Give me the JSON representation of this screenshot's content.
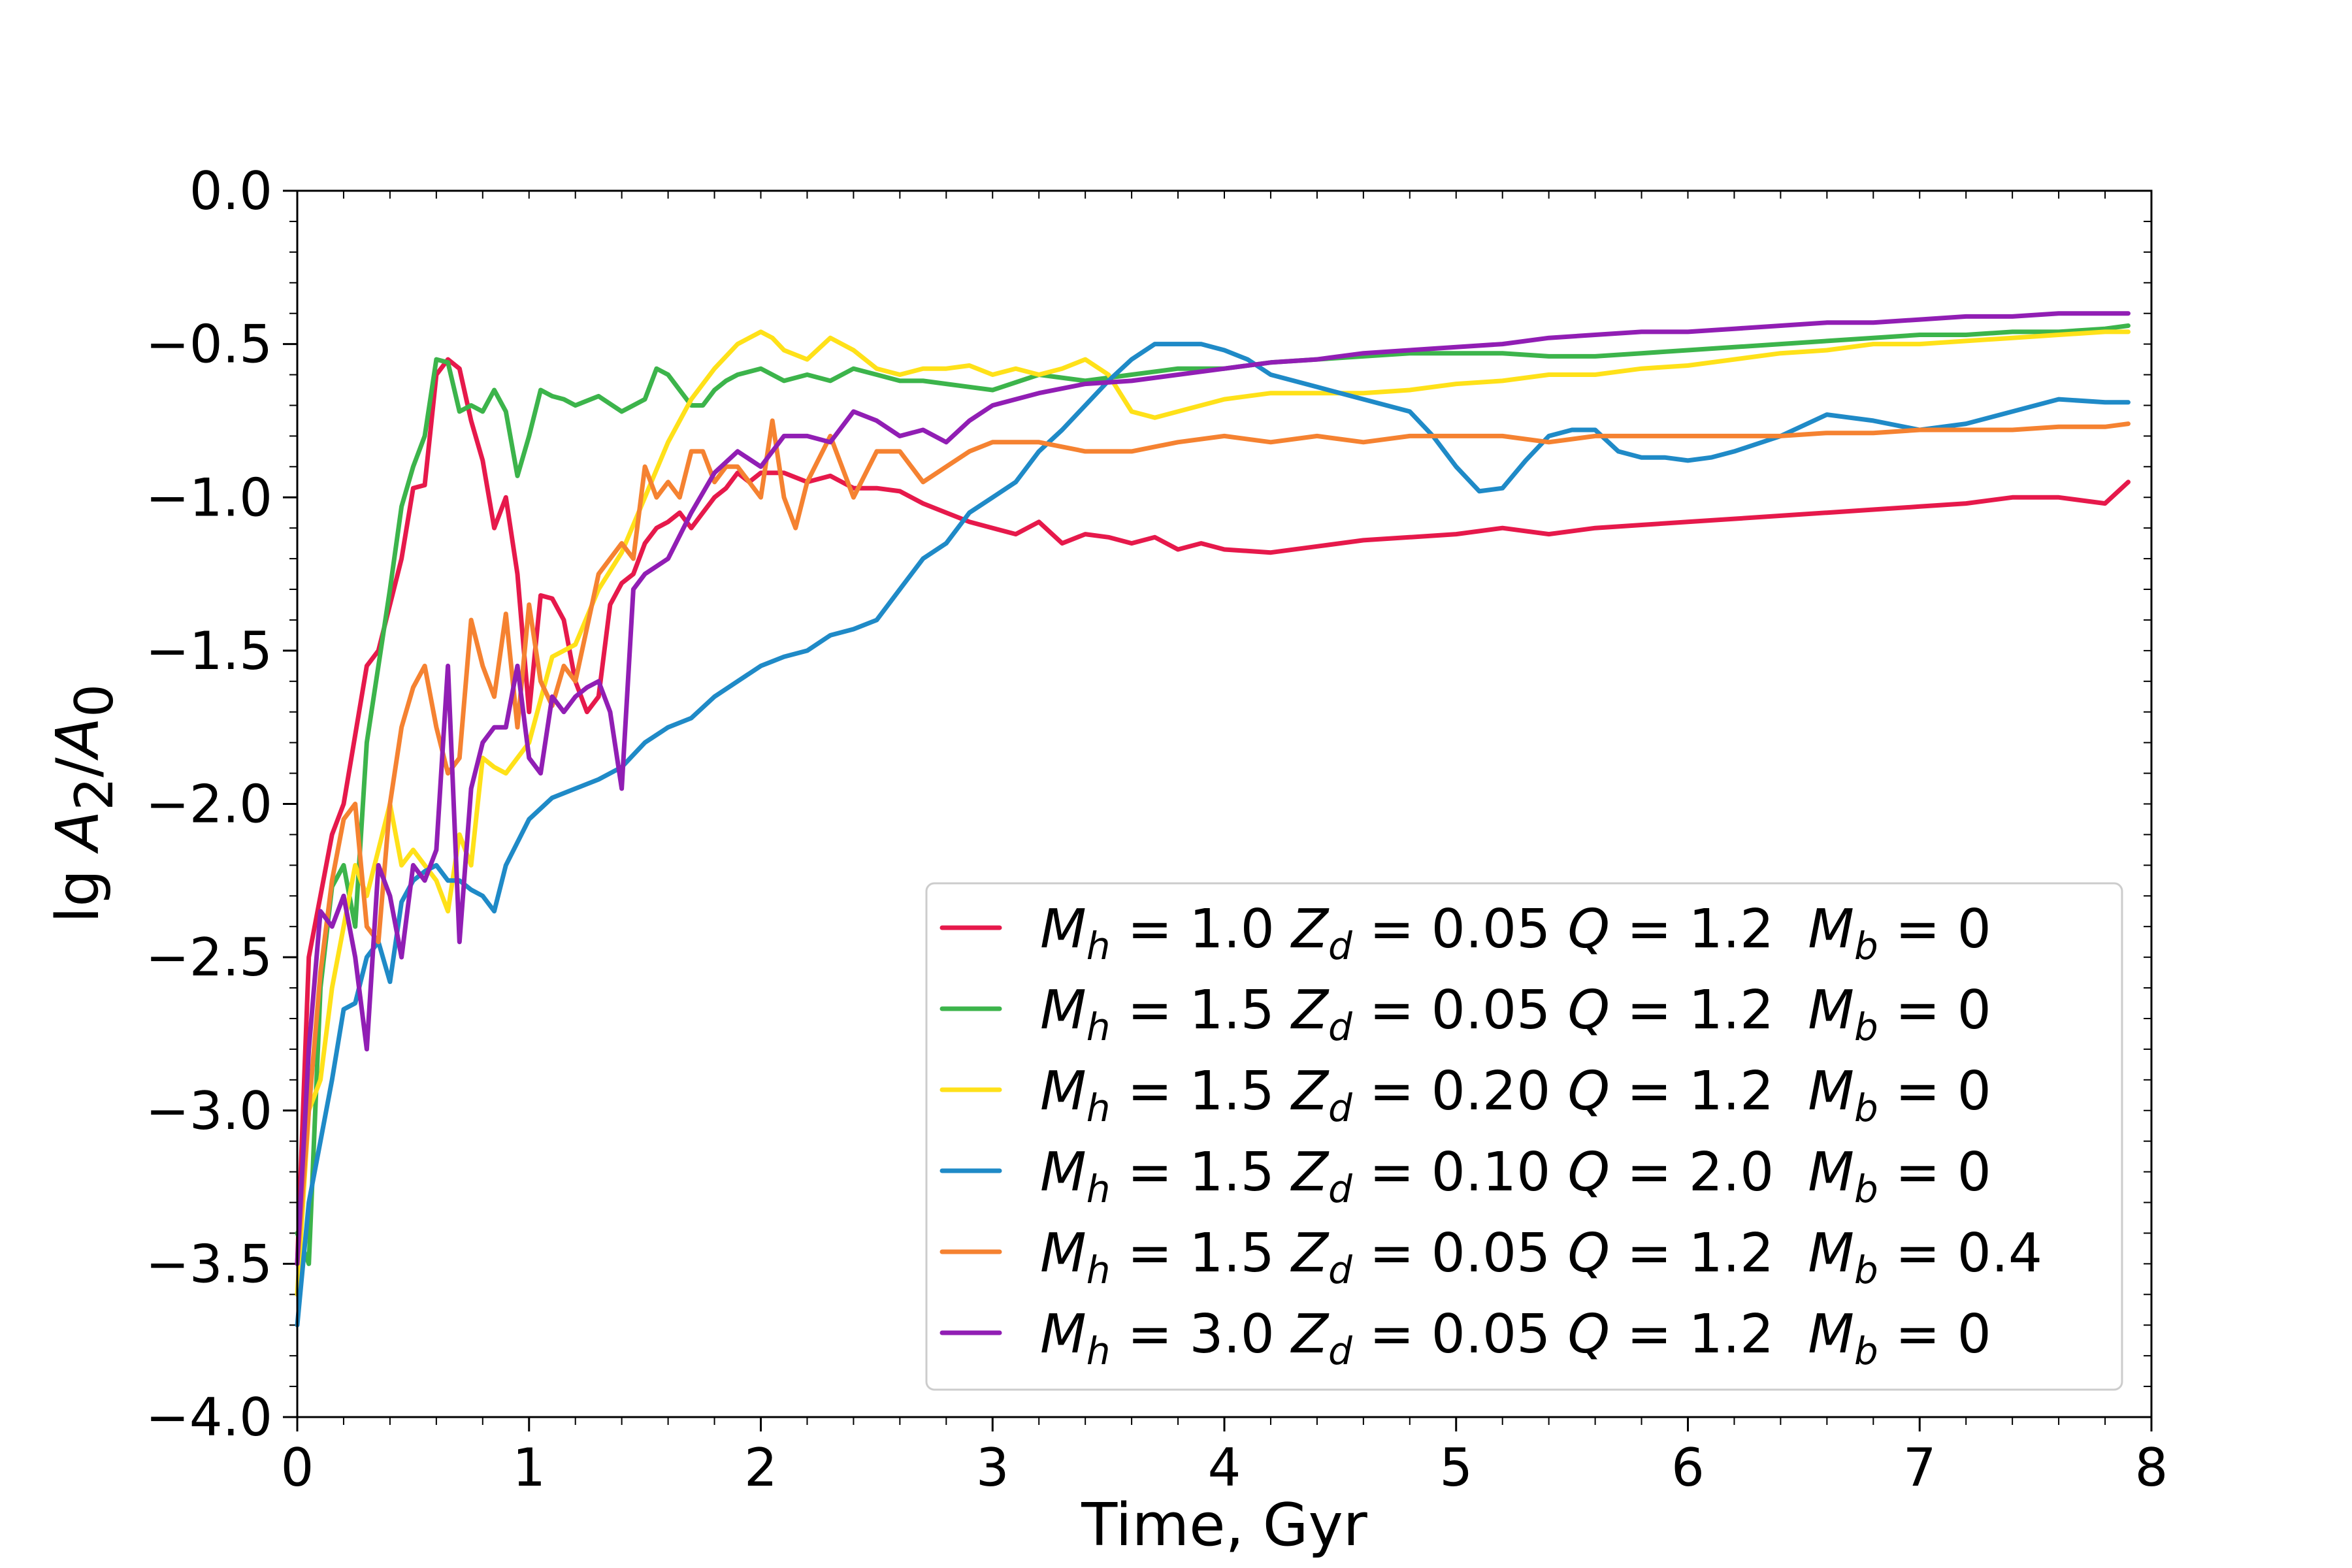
{
  "chart_data": {
    "type": "line",
    "title": "",
    "xlabel": "Time, Gyr",
    "ylabel": "lg A2/A0",
    "xlim": [
      0,
      8
    ],
    "ylim": [
      -4.0,
      0.0
    ],
    "x_ticks": [
      "0",
      "1",
      "2",
      "3",
      "4",
      "5",
      "6",
      "7",
      "8"
    ],
    "y_ticks": [
      "0.0",
      "−0.5",
      "−1.0",
      "−1.5",
      "−2.0",
      "−2.5",
      "−3.0",
      "−3.5",
      "−4.0"
    ],
    "grid": false,
    "legend_position": "lower-right",
    "series": [
      {
        "name": "Mh = 1.0 Zd = 0.05 Q = 1.2 Mb = 0",
        "legend_parts": {
          "mh": "1.0",
          "zd": "0.05",
          "q": "1.2",
          "mb": "0"
        },
        "color": "#e6194b",
        "x": [
          0,
          0.05,
          0.1,
          0.15,
          0.2,
          0.3,
          0.35,
          0.45,
          0.5,
          0.55,
          0.6,
          0.65,
          0.7,
          0.75,
          0.8,
          0.85,
          0.9,
          0.95,
          1.0,
          1.05,
          1.1,
          1.15,
          1.2,
          1.25,
          1.3,
          1.35,
          1.4,
          1.45,
          1.5,
          1.55,
          1.6,
          1.65,
          1.7,
          1.75,
          1.8,
          1.85,
          1.9,
          1.95,
          2.0,
          2.1,
          2.2,
          2.3,
          2.4,
          2.5,
          2.6,
          2.7,
          2.8,
          2.9,
          3.0,
          3.1,
          3.2,
          3.3,
          3.4,
          3.5,
          3.6,
          3.7,
          3.8,
          3.9,
          4.0,
          4.2,
          4.4,
          4.6,
          4.8,
          5.0,
          5.2,
          5.4,
          5.6,
          5.8,
          6.0,
          6.2,
          6.4,
          6.6,
          6.8,
          7.0,
          7.2,
          7.4,
          7.6,
          7.8,
          7.9
        ],
        "y": [
          -3.5,
          -2.5,
          -2.3,
          -2.1,
          -2.0,
          -1.55,
          -1.5,
          -1.2,
          -0.97,
          -0.96,
          -0.6,
          -0.55,
          -0.58,
          -0.75,
          -0.88,
          -1.1,
          -1.0,
          -1.25,
          -1.7,
          -1.32,
          -1.33,
          -1.4,
          -1.6,
          -1.7,
          -1.65,
          -1.35,
          -1.28,
          -1.25,
          -1.15,
          -1.1,
          -1.08,
          -1.05,
          -1.1,
          -1.05,
          -1.0,
          -0.97,
          -0.92,
          -0.95,
          -0.92,
          -0.92,
          -0.95,
          -0.93,
          -0.97,
          -0.97,
          -0.98,
          -1.02,
          -1.05,
          -1.08,
          -1.1,
          -1.12,
          -1.08,
          -1.15,
          -1.12,
          -1.13,
          -1.15,
          -1.13,
          -1.17,
          -1.15,
          -1.17,
          -1.18,
          -1.16,
          -1.14,
          -1.13,
          -1.12,
          -1.1,
          -1.12,
          -1.1,
          -1.09,
          -1.08,
          -1.07,
          -1.06,
          -1.05,
          -1.04,
          -1.03,
          -1.02,
          -1.0,
          -1.0,
          -1.02,
          -0.95
        ]
      },
      {
        "name": "Mh = 1.5 Zd = 0.05 Q = 1.2 Mb = 0",
        "legend_parts": {
          "mh": "1.5",
          "zd": "0.05",
          "q": "1.2",
          "mb": "0"
        },
        "color": "#3cb44b",
        "x": [
          0,
          0.05,
          0.1,
          0.15,
          0.2,
          0.25,
          0.3,
          0.35,
          0.4,
          0.45,
          0.5,
          0.55,
          0.6,
          0.65,
          0.7,
          0.75,
          0.8,
          0.85,
          0.9,
          0.95,
          1.0,
          1.05,
          1.1,
          1.15,
          1.2,
          1.3,
          1.4,
          1.5,
          1.55,
          1.6,
          1.65,
          1.7,
          1.75,
          1.8,
          1.85,
          1.9,
          2.0,
          2.1,
          2.2,
          2.3,
          2.4,
          2.5,
          2.6,
          2.7,
          2.8,
          2.9,
          3.0,
          3.2,
          3.4,
          3.6,
          3.8,
          4.0,
          4.2,
          4.4,
          4.6,
          4.8,
          5.0,
          5.2,
          5.4,
          5.6,
          5.8,
          6.0,
          6.2,
          6.4,
          6.6,
          6.8,
          7.0,
          7.2,
          7.4,
          7.6,
          7.8,
          7.9
        ],
        "y": [
          -3.4,
          -3.5,
          -2.6,
          -2.27,
          -2.2,
          -2.4,
          -1.8,
          -1.55,
          -1.3,
          -1.03,
          -0.9,
          -0.8,
          -0.55,
          -0.56,
          -0.72,
          -0.7,
          -0.72,
          -0.65,
          -0.72,
          -0.93,
          -0.8,
          -0.65,
          -0.67,
          -0.68,
          -0.7,
          -0.67,
          -0.72,
          -0.68,
          -0.58,
          -0.6,
          -0.65,
          -0.7,
          -0.7,
          -0.65,
          -0.62,
          -0.6,
          -0.58,
          -0.62,
          -0.6,
          -0.62,
          -0.58,
          -0.6,
          -0.62,
          -0.62,
          -0.63,
          -0.64,
          -0.65,
          -0.6,
          -0.62,
          -0.6,
          -0.58,
          -0.58,
          -0.56,
          -0.55,
          -0.54,
          -0.53,
          -0.53,
          -0.53,
          -0.54,
          -0.54,
          -0.53,
          -0.52,
          -0.51,
          -0.5,
          -0.49,
          -0.48,
          -0.47,
          -0.47,
          -0.46,
          -0.46,
          -0.45,
          -0.44
        ]
      },
      {
        "name": "Mh = 1.5 Zd = 0.20 Q = 1.2 Mb = 0",
        "legend_parts": {
          "mh": "1.5",
          "zd": "0.20",
          "q": "1.2",
          "mb": "0"
        },
        "color": "#ffe119",
        "x": [
          0,
          0.05,
          0.1,
          0.15,
          0.2,
          0.25,
          0.3,
          0.35,
          0.4,
          0.45,
          0.5,
          0.55,
          0.6,
          0.65,
          0.7,
          0.75,
          0.8,
          0.85,
          0.9,
          0.95,
          1.0,
          1.1,
          1.2,
          1.3,
          1.4,
          1.5,
          1.6,
          1.7,
          1.8,
          1.9,
          2.0,
          2.05,
          2.1,
          2.2,
          2.3,
          2.4,
          2.5,
          2.6,
          2.7,
          2.8,
          2.9,
          3.0,
          3.1,
          3.2,
          3.3,
          3.4,
          3.5,
          3.6,
          3.7,
          3.8,
          3.9,
          4.0,
          4.2,
          4.4,
          4.6,
          4.8,
          5.0,
          5.2,
          5.4,
          5.6,
          5.8,
          6.0,
          6.2,
          6.4,
          6.6,
          6.8,
          7.0,
          7.2,
          7.4,
          7.6,
          7.8,
          7.9
        ],
        "y": [
          -3.6,
          -3.0,
          -2.9,
          -2.6,
          -2.4,
          -2.2,
          -2.3,
          -2.15,
          -2.0,
          -2.2,
          -2.15,
          -2.2,
          -2.25,
          -2.35,
          -2.1,
          -2.2,
          -1.85,
          -1.88,
          -1.9,
          -1.85,
          -1.8,
          -1.52,
          -1.48,
          -1.3,
          -1.18,
          -1.0,
          -0.82,
          -0.68,
          -0.58,
          -0.5,
          -0.46,
          -0.48,
          -0.52,
          -0.55,
          -0.48,
          -0.52,
          -0.58,
          -0.6,
          -0.58,
          -0.58,
          -0.57,
          -0.6,
          -0.58,
          -0.6,
          -0.58,
          -0.55,
          -0.6,
          -0.72,
          -0.74,
          -0.72,
          -0.7,
          -0.68,
          -0.66,
          -0.66,
          -0.66,
          -0.65,
          -0.63,
          -0.62,
          -0.6,
          -0.6,
          -0.58,
          -0.57,
          -0.55,
          -0.53,
          -0.52,
          -0.5,
          -0.5,
          -0.49,
          -0.48,
          -0.47,
          -0.46,
          -0.46
        ]
      },
      {
        "name": "Mh = 1.5 Zd = 0.10 Q = 2.0 Mb = 0",
        "legend_parts": {
          "mh": "1.5",
          "zd": "0.10",
          "q": "2.0",
          "mb": "0"
        },
        "color": "#1f8ac7",
        "x": [
          0,
          0.05,
          0.1,
          0.15,
          0.2,
          0.25,
          0.3,
          0.35,
          0.4,
          0.45,
          0.5,
          0.55,
          0.6,
          0.65,
          0.7,
          0.75,
          0.8,
          0.85,
          0.9,
          1.0,
          1.1,
          1.2,
          1.3,
          1.4,
          1.5,
          1.6,
          1.7,
          1.8,
          1.9,
          2.0,
          2.1,
          2.2,
          2.3,
          2.4,
          2.5,
          2.6,
          2.7,
          2.8,
          2.9,
          3.0,
          3.1,
          3.2,
          3.3,
          3.4,
          3.5,
          3.6,
          3.7,
          3.8,
          3.9,
          4.0,
          4.1,
          4.2,
          4.4,
          4.6,
          4.8,
          4.9,
          5.0,
          5.1,
          5.2,
          5.3,
          5.4,
          5.5,
          5.6,
          5.7,
          5.8,
          5.9,
          6.0,
          6.1,
          6.2,
          6.4,
          6.6,
          6.8,
          7.0,
          7.2,
          7.4,
          7.6,
          7.8,
          7.9
        ],
        "y": [
          -3.7,
          -3.3,
          -3.1,
          -2.9,
          -2.67,
          -2.65,
          -2.5,
          -2.45,
          -2.58,
          -2.32,
          -2.25,
          -2.22,
          -2.2,
          -2.25,
          -2.25,
          -2.28,
          -2.3,
          -2.35,
          -2.2,
          -2.05,
          -1.98,
          -1.95,
          -1.92,
          -1.88,
          -1.8,
          -1.75,
          -1.72,
          -1.65,
          -1.6,
          -1.55,
          -1.52,
          -1.5,
          -1.45,
          -1.43,
          -1.4,
          -1.3,
          -1.2,
          -1.15,
          -1.05,
          -1.0,
          -0.95,
          -0.85,
          -0.78,
          -0.7,
          -0.62,
          -0.55,
          -0.5,
          -0.5,
          -0.5,
          -0.52,
          -0.55,
          -0.6,
          -0.64,
          -0.68,
          -0.72,
          -0.8,
          -0.9,
          -0.98,
          -0.97,
          -0.88,
          -0.8,
          -0.78,
          -0.78,
          -0.85,
          -0.87,
          -0.87,
          -0.88,
          -0.87,
          -0.85,
          -0.8,
          -0.73,
          -0.75,
          -0.78,
          -0.76,
          -0.72,
          -0.68,
          -0.69,
          -0.69
        ]
      },
      {
        "name": "Mh = 1.5 Zd = 0.05 Q = 1.2 Mb = 0.4",
        "legend_parts": {
          "mh": "1.5",
          "zd": "0.05",
          "q": "1.2",
          "mb": "0.4"
        },
        "color": "#f58231",
        "x": [
          0,
          0.05,
          0.1,
          0.15,
          0.2,
          0.25,
          0.3,
          0.35,
          0.4,
          0.45,
          0.5,
          0.55,
          0.6,
          0.65,
          0.7,
          0.75,
          0.8,
          0.85,
          0.9,
          0.95,
          1.0,
          1.05,
          1.1,
          1.15,
          1.2,
          1.3,
          1.4,
          1.45,
          1.5,
          1.55,
          1.6,
          1.65,
          1.7,
          1.75,
          1.8,
          1.85,
          1.9,
          2.0,
          2.05,
          2.1,
          2.15,
          2.2,
          2.3,
          2.4,
          2.5,
          2.6,
          2.7,
          2.8,
          2.9,
          3.0,
          3.2,
          3.4,
          3.6,
          3.8,
          4.0,
          4.2,
          4.4,
          4.6,
          4.8,
          5.0,
          5.2,
          5.4,
          5.6,
          5.8,
          6.0,
          6.2,
          6.4,
          6.6,
          6.8,
          7.0,
          7.2,
          7.4,
          7.6,
          7.8,
          7.9
        ],
        "y": [
          -3.5,
          -3.0,
          -2.55,
          -2.25,
          -2.05,
          -2.0,
          -2.4,
          -2.45,
          -2.0,
          -1.75,
          -1.62,
          -1.55,
          -1.75,
          -1.9,
          -1.85,
          -1.4,
          -1.55,
          -1.65,
          -1.38,
          -1.75,
          -1.35,
          -1.6,
          -1.68,
          -1.55,
          -1.6,
          -1.25,
          -1.15,
          -1.2,
          -0.9,
          -1.0,
          -0.95,
          -1.0,
          -0.85,
          -0.85,
          -0.95,
          -0.9,
          -0.9,
          -1.0,
          -0.75,
          -1.0,
          -1.1,
          -0.95,
          -0.8,
          -1.0,
          -0.85,
          -0.85,
          -0.95,
          -0.9,
          -0.85,
          -0.82,
          -0.82,
          -0.85,
          -0.85,
          -0.82,
          -0.8,
          -0.82,
          -0.8,
          -0.82,
          -0.8,
          -0.8,
          -0.8,
          -0.82,
          -0.8,
          -0.8,
          -0.8,
          -0.8,
          -0.8,
          -0.79,
          -0.79,
          -0.78,
          -0.78,
          -0.78,
          -0.77,
          -0.77,
          -0.76
        ]
      },
      {
        "name": "Mh = 3.0 Zd = 0.05 Q = 1.2 Mb = 0",
        "legend_parts": {
          "mh": "3.0",
          "zd": "0.05",
          "q": "1.2",
          "mb": "0"
        },
        "color": "#911eb4",
        "x": [
          0,
          0.05,
          0.1,
          0.15,
          0.2,
          0.25,
          0.3,
          0.35,
          0.4,
          0.45,
          0.5,
          0.55,
          0.6,
          0.65,
          0.7,
          0.75,
          0.8,
          0.85,
          0.9,
          0.95,
          1.0,
          1.05,
          1.1,
          1.15,
          1.2,
          1.25,
          1.3,
          1.35,
          1.4,
          1.45,
          1.5,
          1.6,
          1.7,
          1.8,
          1.9,
          2.0,
          2.1,
          2.2,
          2.3,
          2.4,
          2.5,
          2.6,
          2.7,
          2.8,
          2.9,
          3.0,
          3.2,
          3.4,
          3.6,
          3.8,
          4.0,
          4.2,
          4.4,
          4.6,
          4.8,
          5.0,
          5.2,
          5.4,
          5.6,
          5.8,
          6.0,
          6.2,
          6.4,
          6.6,
          6.8,
          7.0,
          7.2,
          7.4,
          7.6,
          7.8,
          7.9
        ],
        "y": [
          -3.5,
          -2.8,
          -2.35,
          -2.4,
          -2.3,
          -2.5,
          -2.8,
          -2.2,
          -2.3,
          -2.5,
          -2.2,
          -2.25,
          -2.15,
          -1.55,
          -2.45,
          -1.95,
          -1.8,
          -1.75,
          -1.75,
          -1.55,
          -1.85,
          -1.9,
          -1.65,
          -1.7,
          -1.65,
          -1.62,
          -1.6,
          -1.7,
          -1.95,
          -1.3,
          -1.25,
          -1.2,
          -1.05,
          -0.92,
          -0.85,
          -0.9,
          -0.8,
          -0.8,
          -0.82,
          -0.72,
          -0.75,
          -0.8,
          -0.78,
          -0.82,
          -0.75,
          -0.7,
          -0.66,
          -0.63,
          -0.62,
          -0.6,
          -0.58,
          -0.56,
          -0.55,
          -0.53,
          -0.52,
          -0.51,
          -0.5,
          -0.48,
          -0.47,
          -0.46,
          -0.46,
          -0.45,
          -0.44,
          -0.43,
          -0.43,
          -0.42,
          -0.41,
          -0.41,
          -0.4,
          -0.4,
          -0.4
        ]
      }
    ]
  }
}
